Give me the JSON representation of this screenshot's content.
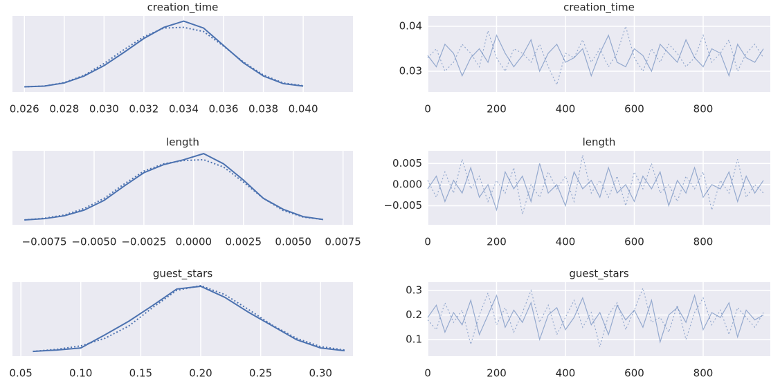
{
  "chart_data": [
    {
      "type": "line",
      "title": "creation_time",
      "x": [
        0.026,
        0.027,
        0.028,
        0.029,
        0.03,
        0.031,
        0.032,
        0.033,
        0.034,
        0.035,
        0.036,
        0.037,
        0.038,
        0.039,
        0.04
      ],
      "series": [
        {
          "color": "#4c72b0",
          "linestyle": "solid",
          "values": [
            1,
            3,
            12,
            32,
            62,
            100,
            140,
            172,
            190,
            170,
            120,
            70,
            32,
            10,
            3
          ]
        },
        {
          "color": "#4c72b0",
          "linestyle": "dotted",
          "values": [
            1,
            3,
            13,
            34,
            68,
            108,
            145,
            170,
            172,
            160,
            118,
            72,
            35,
            12,
            4
          ]
        }
      ],
      "xlim": [
        0.0254,
        0.0425
      ],
      "ylim": [
        -14,
        205
      ],
      "xticks": [
        0.026,
        0.028,
        {
          "value": 0.03,
          "label": "0.030"
        },
        0.032,
        0.034,
        0.036,
        0.038,
        {
          "value": 0.04,
          "label": "0.040"
        }
      ],
      "grid": "x"
    },
    {
      "type": "line",
      "title": "creation_time",
      "x": [
        0,
        25,
        50,
        75,
        100,
        125,
        150,
        175,
        200,
        225,
        250,
        275,
        300,
        325,
        350,
        375,
        400,
        425,
        450,
        475,
        500,
        525,
        550,
        575,
        600,
        625,
        650,
        675,
        700,
        725,
        750,
        775,
        800,
        825,
        850,
        875,
        900,
        925,
        950,
        975
      ],
      "series": [
        {
          "color": "#4c72b0",
          "linestyle": "solid",
          "values": [
            0.0335,
            0.031,
            0.036,
            0.034,
            0.029,
            0.033,
            0.035,
            0.032,
            0.038,
            0.034,
            0.031,
            0.0335,
            0.037,
            0.03,
            0.034,
            0.036,
            0.032,
            0.033,
            0.035,
            0.029,
            0.034,
            0.038,
            0.032,
            0.031,
            0.035,
            0.0335,
            0.03,
            0.036,
            0.034,
            0.032,
            0.037,
            0.033,
            0.031,
            0.035,
            0.034,
            0.029,
            0.036,
            0.033,
            0.032,
            0.035
          ]
        },
        {
          "color": "#4c72b0",
          "linestyle": "dotted",
          "values": [
            0.033,
            0.035,
            0.03,
            0.032,
            0.036,
            0.034,
            0.031,
            0.039,
            0.033,
            0.03,
            0.035,
            0.034,
            0.032,
            0.036,
            0.031,
            0.027,
            0.034,
            0.033,
            0.037,
            0.032,
            0.035,
            0.031,
            0.034,
            0.04,
            0.033,
            0.03,
            0.035,
            0.032,
            0.036,
            0.034,
            0.031,
            0.033,
            0.038,
            0.032,
            0.034,
            0.037,
            0.03,
            0.034,
            0.036,
            0.033
          ]
        }
      ],
      "xlim": [
        0,
        995
      ],
      "ylim": [
        0.0254,
        0.0423
      ],
      "xticks": [
        0,
        200,
        400,
        600,
        800
      ],
      "yticks": [
        0.03,
        0.04
      ],
      "grid": "both"
    },
    {
      "type": "line",
      "title": "length",
      "x": [
        -0.0085,
        -0.0075,
        -0.0065,
        -0.0055,
        -0.0045,
        -0.0035,
        -0.0025,
        -0.0015,
        -0.0005,
        0.0005,
        0.0015,
        0.0025,
        0.0035,
        0.0045,
        0.0055,
        0.0065
      ],
      "series": [
        {
          "color": "#4c72b0",
          "linestyle": "solid",
          "values": [
            2,
            5,
            12,
            26,
            50,
            85,
            118,
            138,
            150,
            165,
            140,
            100,
            55,
            28,
            10,
            3
          ]
        },
        {
          "color": "#4c72b0",
          "linestyle": "dotted",
          "values": [
            2,
            6,
            14,
            30,
            55,
            90,
            122,
            140,
            148,
            150,
            132,
            95,
            55,
            25,
            9,
            3
          ]
        }
      ],
      "xlim": [
        -0.0091,
        0.008
      ],
      "ylim": [
        -10,
        172
      ],
      "xticks": [
        {
          "value": -0.0075,
          "label": "−0.0075"
        },
        {
          "value": -0.005,
          "label": "−0.0050"
        },
        {
          "value": -0.0025,
          "label": "−0.0025"
        },
        {
          "value": 0,
          "label": "0.0000"
        },
        0.0025,
        {
          "value": 0.005,
          "label": "0.0050"
        },
        0.0075
      ],
      "grid": "x"
    },
    {
      "type": "line",
      "title": "length",
      "x": [
        0,
        25,
        50,
        75,
        100,
        125,
        150,
        175,
        200,
        225,
        250,
        275,
        300,
        325,
        350,
        375,
        400,
        425,
        450,
        475,
        500,
        525,
        550,
        575,
        600,
        625,
        650,
        675,
        700,
        725,
        750,
        775,
        800,
        825,
        850,
        875,
        900,
        925,
        950,
        975
      ],
      "series": [
        {
          "color": "#4c72b0",
          "linestyle": "solid",
          "values": [
            -0.001,
            0.002,
            -0.004,
            0.001,
            -0.002,
            0.004,
            -0.003,
            0.0,
            -0.006,
            0.003,
            -0.001,
            0.002,
            -0.004,
            0.005,
            -0.002,
            0.0,
            -0.005,
            0.003,
            -0.001,
            0.001,
            -0.003,
            0.004,
            -0.002,
            0.0,
            -0.004,
            0.002,
            -0.001,
            0.003,
            -0.005,
            0.001,
            -0.002,
            0.004,
            -0.003,
            0.0,
            -0.001,
            0.003,
            -0.004,
            0.002,
            -0.002,
            0.001
          ]
        },
        {
          "color": "#4c72b0",
          "linestyle": "dotted",
          "values": [
            0.001,
            -0.003,
            0.003,
            -0.002,
            0.006,
            -0.001,
            0.002,
            -0.004,
            0.001,
            -0.002,
            0.004,
            -0.007,
            0.0,
            -0.003,
            0.003,
            -0.001,
            0.002,
            -0.004,
            0.007,
            -0.002,
            0.001,
            -0.003,
            0.002,
            -0.005,
            0.003,
            -0.001,
            0.005,
            -0.002,
            0.0,
            -0.004,
            0.002,
            -0.001,
            0.003,
            -0.006,
            0.001,
            -0.002,
            0.006,
            -0.003,
            0.0,
            -0.002
          ]
        }
      ],
      "xlim": [
        0,
        995
      ],
      "ylim": [
        -0.0095,
        0.008
      ],
      "xticks": [
        0,
        200,
        400,
        600,
        800
      ],
      "yticks": [
        {
          "value": -0.005,
          "label": "−0.005"
        },
        {
          "value": 0,
          "label": "0.000"
        },
        0.005
      ],
      "grid": "both"
    },
    {
      "type": "line",
      "title": "guest_stars",
      "x": [
        0.06,
        0.08,
        0.1,
        0.12,
        0.14,
        0.16,
        0.18,
        0.2,
        0.22,
        0.24,
        0.26,
        0.28,
        0.3,
        0.32
      ],
      "series": [
        {
          "color": "#4c72b0",
          "linestyle": "solid",
          "values": [
            0.1,
            0.3,
            0.6,
            2.5,
            4.5,
            6.8,
            9.2,
            9.6,
            8.0,
            5.8,
            3.8,
            1.8,
            0.6,
            0.2
          ]
        },
        {
          "color": "#4c72b0",
          "linestyle": "dotted",
          "values": [
            0.1,
            0.4,
            0.9,
            2.0,
            3.8,
            6.5,
            9.0,
            9.7,
            8.4,
            6.2,
            3.9,
            2.0,
            0.8,
            0.3
          ]
        }
      ],
      "xlim": [
        0.043,
        0.327
      ],
      "ylim": [
        -0.6,
        10.2
      ],
      "xticks": [
        0.05,
        {
          "value": 0.1,
          "label": "0.10"
        },
        0.15,
        {
          "value": 0.2,
          "label": "0.20"
        },
        0.25,
        {
          "value": 0.3,
          "label": "0.30"
        }
      ],
      "grid": "x"
    },
    {
      "type": "line",
      "title": "guest_stars",
      "x": [
        0,
        25,
        50,
        75,
        100,
        125,
        150,
        175,
        200,
        225,
        250,
        275,
        300,
        325,
        350,
        375,
        400,
        425,
        450,
        475,
        500,
        525,
        550,
        575,
        600,
        625,
        650,
        675,
        700,
        725,
        750,
        775,
        800,
        825,
        850,
        875,
        900,
        925,
        950,
        975
      ],
      "series": [
        {
          "color": "#4c72b0",
          "linestyle": "solid",
          "values": [
            0.19,
            0.24,
            0.13,
            0.21,
            0.16,
            0.26,
            0.12,
            0.2,
            0.28,
            0.15,
            0.22,
            0.17,
            0.25,
            0.1,
            0.2,
            0.23,
            0.14,
            0.19,
            0.27,
            0.16,
            0.21,
            0.12,
            0.24,
            0.18,
            0.22,
            0.15,
            0.26,
            0.09,
            0.2,
            0.23,
            0.17,
            0.28,
            0.14,
            0.21,
            0.19,
            0.25,
            0.11,
            0.22,
            0.18,
            0.2
          ]
        },
        {
          "color": "#4c72b0",
          "linestyle": "dotted",
          "values": [
            0.18,
            0.14,
            0.25,
            0.17,
            0.22,
            0.08,
            0.2,
            0.29,
            0.16,
            0.23,
            0.13,
            0.21,
            0.3,
            0.17,
            0.24,
            0.12,
            0.19,
            0.26,
            0.15,
            0.21,
            0.07,
            0.2,
            0.25,
            0.14,
            0.22,
            0.31,
            0.17,
            0.19,
            0.13,
            0.24,
            0.1,
            0.21,
            0.27,
            0.16,
            0.22,
            0.12,
            0.23,
            0.19,
            0.15,
            0.21
          ]
        }
      ],
      "xlim": [
        0,
        995
      ],
      "ylim": [
        0.032,
        0.334
      ],
      "xticks": [
        0,
        200,
        400,
        600,
        800
      ],
      "yticks": [
        0.1,
        0.2,
        0.3
      ],
      "grid": "both"
    }
  ]
}
